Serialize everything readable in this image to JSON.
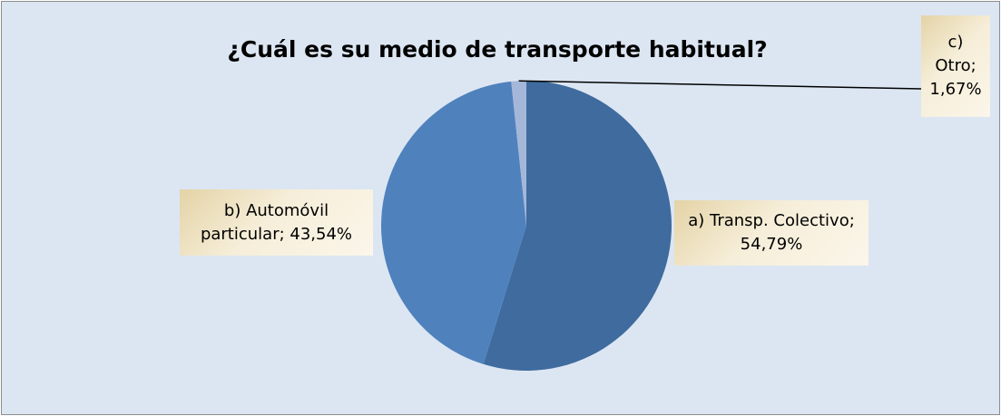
{
  "chart_data": {
    "type": "pie",
    "title": "¿Cuál es su medio de transporte habitual?",
    "values": [
      54.79,
      43.54,
      1.67
    ],
    "value_labels": [
      "a) Transp. Colectivo; 54,79%",
      "b) Automóvil particular; 43,54%",
      "c) Otro; 1,67%"
    ],
    "colors": [
      "#3f6b9e",
      "#4f81bd",
      "#a5b7d9"
    ]
  }
}
